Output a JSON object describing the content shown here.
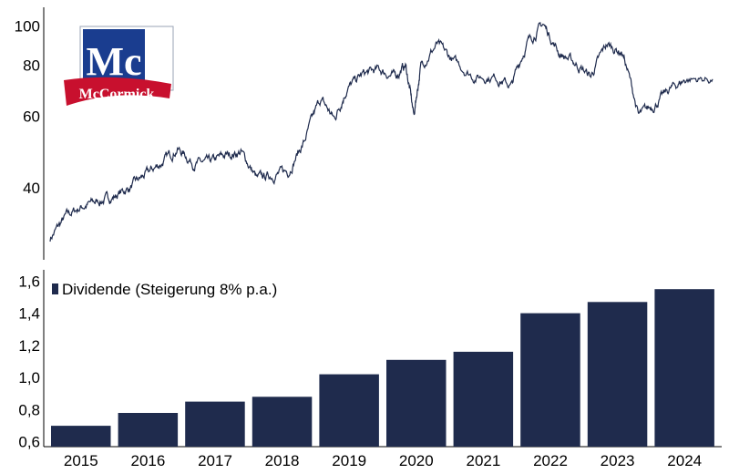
{
  "logo": {
    "text": "McCormick",
    "monogram": "Mc",
    "colors": {
      "blue": "#1a3d8f",
      "red": "#c8102e",
      "white": "#ffffff"
    }
  },
  "chart_data": [
    {
      "type": "line",
      "title": "",
      "xlabel": "",
      "ylabel": "",
      "y_scale": "log",
      "ylim": [
        27,
        110
      ],
      "y_ticks": [
        40,
        60,
        80,
        100
      ],
      "y_tick_labels": [
        "40",
        "60",
        "80",
        "100"
      ],
      "x_range": [
        "2014-07-01",
        "2024-11-30"
      ],
      "color": "#1f2b4d",
      "series": [
        {
          "points": [
            [
              "2014-07-01",
              30
            ],
            [
              "2014-10-01",
              34
            ],
            [
              "2015-01-01",
              36
            ],
            [
              "2015-04-01",
              37
            ],
            [
              "2015-07-01",
              38
            ],
            [
              "2015-10-01",
              40
            ],
            [
              "2016-01-01",
              43
            ],
            [
              "2016-04-01",
              46
            ],
            [
              "2016-07-01",
              50
            ],
            [
              "2016-10-01",
              46
            ],
            [
              "2017-01-01",
              46
            ],
            [
              "2017-04-01",
              48
            ],
            [
              "2017-07-01",
              49
            ],
            [
              "2017-10-01",
              42
            ],
            [
              "2018-01-01",
              43
            ],
            [
              "2018-04-01",
              44
            ],
            [
              "2018-07-01",
              52
            ],
            [
              "2018-10-01",
              66
            ],
            [
              "2018-12-20",
              59
            ],
            [
              "2019-03-01",
              70
            ],
            [
              "2019-06-01",
              76
            ],
            [
              "2019-09-01",
              78
            ],
            [
              "2019-12-01",
              75
            ],
            [
              "2020-02-01",
              80
            ],
            [
              "2020-03-20",
              60
            ],
            [
              "2020-05-01",
              80
            ],
            [
              "2020-08-01",
              90
            ],
            [
              "2020-11-01",
              82
            ],
            [
              "2021-03-01",
              75
            ],
            [
              "2021-07-01",
              75
            ],
            [
              "2021-10-01",
              71
            ],
            [
              "2022-01-01",
              91
            ],
            [
              "2022-04-01",
              101
            ],
            [
              "2022-07-01",
              86
            ],
            [
              "2022-10-01",
              81
            ],
            [
              "2023-01-01",
              75
            ],
            [
              "2023-04-01",
              90
            ],
            [
              "2023-07-01",
              86
            ],
            [
              "2023-10-01",
              60
            ],
            [
              "2024-01-01",
              64
            ],
            [
              "2024-04-01",
              70
            ],
            [
              "2024-07-01",
              74
            ],
            [
              "2024-11-30",
              74
            ]
          ]
        }
      ]
    },
    {
      "type": "bar",
      "title": "",
      "xlabel": "",
      "ylabel": "",
      "categories": [
        "2015",
        "2016",
        "2017",
        "2018",
        "2019",
        "2020",
        "2021",
        "2022",
        "2023",
        "2024"
      ],
      "series": [
        {
          "name": "Dividende (Steigerung 8% p.a.)",
          "values": [
            0.7,
            0.78,
            0.85,
            0.88,
            1.02,
            1.11,
            1.16,
            1.4,
            1.47,
            1.55
          ]
        }
      ],
      "ylim": [
        0.57,
        1.67
      ],
      "y_ticks": [
        0.6,
        0.8,
        1.0,
        1.2,
        1.4,
        1.6
      ],
      "y_tick_labels": [
        "0,6",
        "0,8",
        "1,0",
        "1,2",
        "1,4",
        "1,6"
      ],
      "color": "#1f2b4d",
      "legend_position": "top-left"
    }
  ]
}
